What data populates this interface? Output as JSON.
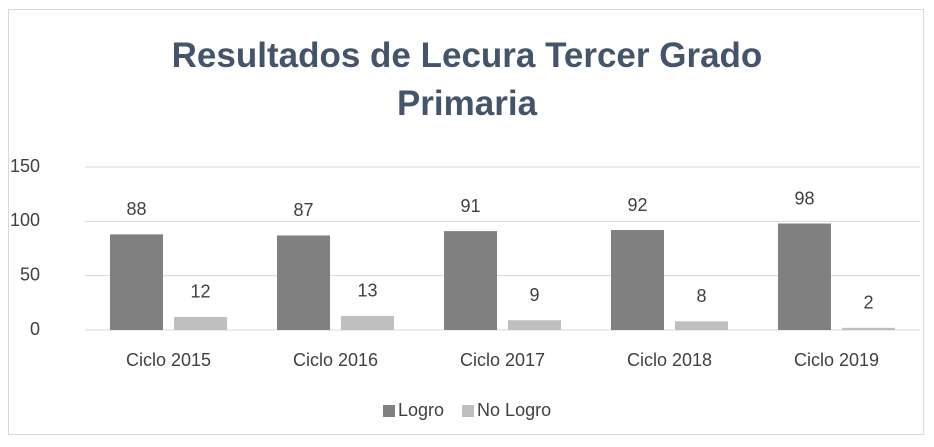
{
  "chart_data": {
    "type": "bar",
    "title": "Resultados de Lecura Tercer Grado Primaria",
    "categories": [
      "Ciclo 2015",
      "Ciclo 2016",
      "Ciclo 2017",
      "Ciclo 2018",
      "Ciclo 2019"
    ],
    "series": [
      {
        "name": "Logro",
        "color": "#808080",
        "values": [
          88,
          87,
          91,
          92,
          98
        ]
      },
      {
        "name": "No Logro",
        "color": "#bfbfbf",
        "values": [
          12,
          13,
          9,
          8,
          2
        ]
      }
    ],
    "ylim": [
      0,
      150
    ],
    "yticks": [
      0,
      50,
      100,
      150
    ],
    "grid": true,
    "legend": "bottom"
  }
}
